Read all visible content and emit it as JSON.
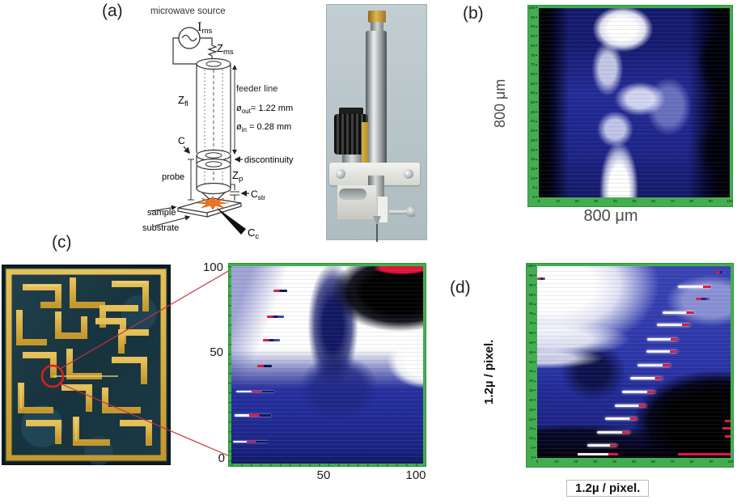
{
  "colors": {
    "frame_green": "#43ad4f",
    "scan_blue": "#232b96",
    "marker_red": "#e51840",
    "annotation_red": "#d91e1e",
    "star_orange": "#ef7320",
    "chip_gold": "#d9ab3f"
  },
  "panel_a": {
    "label": "(a)",
    "title": "microwave source",
    "ims": {
      "base": "I",
      "sub": "ms"
    },
    "zms": {
      "base": "Z",
      "sub": "ms"
    },
    "zfl": {
      "base": "Z",
      "sub": "fl"
    },
    "feeder_line": "feeder line",
    "d_out": {
      "base": "ø",
      "sub": "out",
      "rest": "= 1.22 mm"
    },
    "d_in": {
      "base": "ø",
      "sub": "in",
      "rest": " = 0.28 mm"
    },
    "c_label": "C",
    "discontinuity": "discontinuity",
    "probe": "probe",
    "zp": {
      "base": "Z",
      "sub": "p"
    },
    "cstr": {
      "base": "C",
      "sub": "str"
    },
    "sample": "sample",
    "substrate": "substrate",
    "cc": {
      "base": "C",
      "sub": "c"
    }
  },
  "panel_b": {
    "label": "(b)",
    "xlabel": "800 μm",
    "ylabel": "800 μm",
    "y_ticks": [
      "100",
      "95",
      "90",
      "85",
      "80",
      "75",
      "70",
      "65",
      "60",
      "55",
      "50",
      "45",
      "40",
      "35",
      "30",
      "25",
      "20",
      "15",
      "10",
      "5",
      "0"
    ],
    "x_ticks": [
      "0",
      "10",
      "20",
      "30",
      "40",
      "50",
      "60",
      "70",
      "80",
      "90",
      "100"
    ]
  },
  "panel_c": {
    "label": "(c)",
    "y_axis": [
      "100",
      "50",
      "0"
    ],
    "x_axis": [
      "50",
      "100"
    ],
    "markers": [
      {
        "x": 22,
        "w": 7,
        "y": 12,
        "t": "red-dark"
      },
      {
        "x": 18.5,
        "w": 9,
        "y": 25,
        "t": "red-blue"
      },
      {
        "x": 16.5,
        "w": 9,
        "y": 37,
        "t": "red-blue"
      },
      {
        "x": 13.5,
        "w": 7.5,
        "y": 50,
        "t": "red-dark"
      },
      {
        "x": 2.5,
        "w": 20,
        "y": 63,
        "t": "white-red"
      },
      {
        "x": 1.5,
        "w": 19,
        "y": 75,
        "t": "white-red"
      },
      {
        "x": 1,
        "w": 18,
        "y": 88.5,
        "t": "white-magenta"
      }
    ]
  },
  "panel_d": {
    "label": "(d)",
    "xlabel": "1.2µ / pixel.",
    "ylabel": "1.2µ / pixel.",
    "y_ticks": [
      "100",
      "95",
      "90",
      "85",
      "80",
      "75",
      "70",
      "65",
      "60",
      "55",
      "50",
      "45",
      "40",
      "35",
      "30",
      "25",
      "20",
      "15",
      "10",
      "5",
      "0"
    ],
    "x_ticks": [
      "0",
      "10",
      "20",
      "30",
      "40",
      "50",
      "60",
      "70",
      "80",
      "90",
      "100"
    ],
    "bars": [
      {
        "x": 92.5,
        "w": 4.5,
        "y": 2.5,
        "t": "dash"
      },
      {
        "x": 0,
        "w": 4,
        "y": 6,
        "t": "dash"
      },
      {
        "x": 73,
        "w": 17,
        "y": 10,
        "t": "bar"
      },
      {
        "x": 82,
        "w": 7,
        "y": 16.5,
        "t": "dash"
      },
      {
        "x": 65,
        "w": 16,
        "y": 23.5,
        "t": "bar"
      },
      {
        "x": 62,
        "w": 17,
        "y": 30,
        "t": "bar"
      },
      {
        "x": 57,
        "w": 16,
        "y": 37.5,
        "t": "bar"
      },
      {
        "x": 56.5,
        "w": 16,
        "y": 44,
        "t": "bar"
      },
      {
        "x": 52,
        "w": 17,
        "y": 51,
        "t": "bar"
      },
      {
        "x": 48,
        "w": 17,
        "y": 58,
        "t": "bar"
      },
      {
        "x": 44,
        "w": 17,
        "y": 65,
        "t": "bar"
      },
      {
        "x": 40,
        "w": 16.5,
        "y": 72,
        "t": "bar"
      },
      {
        "x": 35,
        "w": 17,
        "y": 79,
        "t": "bar"
      },
      {
        "x": 31,
        "w": 17,
        "y": 86,
        "t": "bar"
      },
      {
        "x": 26,
        "w": 15.5,
        "y": 93,
        "t": "bar"
      },
      {
        "x": 97,
        "w": 3,
        "y": 80,
        "t": "red"
      },
      {
        "x": 96,
        "w": 4,
        "y": 84,
        "t": "red"
      },
      {
        "x": 97,
        "w": 3,
        "y": 88,
        "t": "red"
      },
      {
        "x": 21,
        "w": 16,
        "y": 97.5,
        "t": "white"
      },
      {
        "x": 37,
        "w": 5,
        "y": 97.5,
        "t": "red"
      },
      {
        "x": 73,
        "w": 27,
        "y": 97.5,
        "t": "red"
      }
    ]
  }
}
